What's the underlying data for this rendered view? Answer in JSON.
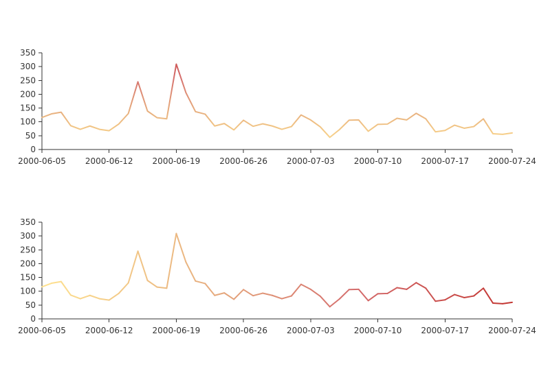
{
  "chart_data": [
    {
      "type": "line",
      "color_mode": "visualMap-y",
      "visual_map": {
        "min": 0,
        "max": 400,
        "colors": [
          "#ffe28f",
          "#e8b17f",
          "#d46c6c",
          "#c23531"
        ]
      },
      "x": [
        "2000-06-05",
        "2000-06-06",
        "2000-06-07",
        "2000-06-08",
        "2000-06-09",
        "2000-06-10",
        "2000-06-11",
        "2000-06-12",
        "2000-06-13",
        "2000-06-14",
        "2000-06-15",
        "2000-06-16",
        "2000-06-17",
        "2000-06-18",
        "2000-06-19",
        "2000-06-20",
        "2000-06-21",
        "2000-06-22",
        "2000-06-23",
        "2000-06-24",
        "2000-06-25",
        "2000-06-26",
        "2000-06-27",
        "2000-06-28",
        "2000-06-29",
        "2000-06-30",
        "2000-07-01",
        "2000-07-02",
        "2000-07-03",
        "2000-07-04",
        "2000-07-05",
        "2000-07-06",
        "2000-07-07",
        "2000-07-08",
        "2000-07-09",
        "2000-07-10",
        "2000-07-11",
        "2000-07-12",
        "2000-07-13",
        "2000-07-14",
        "2000-07-15",
        "2000-07-16",
        "2000-07-17",
        "2000-07-18",
        "2000-07-19",
        "2000-07-20",
        "2000-07-21",
        "2000-07-22",
        "2000-07-23",
        "2000-07-24"
      ],
      "values": [
        116,
        129,
        135,
        86,
        73,
        85,
        73,
        68,
        92,
        130,
        245,
        139,
        115,
        111,
        309,
        206,
        137,
        128,
        85,
        94,
        71,
        106,
        84,
        93,
        85,
        73,
        83,
        125,
        107,
        82,
        44,
        72,
        106,
        107,
        66,
        91,
        92,
        113,
        107,
        131,
        111,
        64,
        69,
        88,
        77,
        83,
        111,
        57,
        55,
        60
      ],
      "x_ticks": [
        "2000-06-05",
        "2000-06-12",
        "2000-06-19",
        "2000-06-26",
        "2000-07-03",
        "2000-07-10",
        "2000-07-17",
        "2000-07-24"
      ],
      "y_ticks": [
        "0",
        "50",
        "100",
        "150",
        "200",
        "250",
        "300",
        "350"
      ],
      "ylim": [
        0,
        350
      ]
    },
    {
      "type": "line",
      "color_mode": "visualMap-x",
      "visual_map": {
        "min": 0,
        "max": 49,
        "colors": [
          "#ffe28f",
          "#e8b17f",
          "#d46c6c",
          "#c23531"
        ]
      },
      "x": [
        "2000-06-05",
        "2000-06-06",
        "2000-06-07",
        "2000-06-08",
        "2000-06-09",
        "2000-06-10",
        "2000-06-11",
        "2000-06-12",
        "2000-06-13",
        "2000-06-14",
        "2000-06-15",
        "2000-06-16",
        "2000-06-17",
        "2000-06-18",
        "2000-06-19",
        "2000-06-20",
        "2000-06-21",
        "2000-06-22",
        "2000-06-23",
        "2000-06-24",
        "2000-06-25",
        "2000-06-26",
        "2000-06-27",
        "2000-06-28",
        "2000-06-29",
        "2000-06-30",
        "2000-07-01",
        "2000-07-02",
        "2000-07-03",
        "2000-07-04",
        "2000-07-05",
        "2000-07-06",
        "2000-07-07",
        "2000-07-08",
        "2000-07-09",
        "2000-07-10",
        "2000-07-11",
        "2000-07-12",
        "2000-07-13",
        "2000-07-14",
        "2000-07-15",
        "2000-07-16",
        "2000-07-17",
        "2000-07-18",
        "2000-07-19",
        "2000-07-20",
        "2000-07-21",
        "2000-07-22",
        "2000-07-23",
        "2000-07-24"
      ],
      "values": [
        116,
        129,
        135,
        86,
        73,
        85,
        73,
        68,
        92,
        130,
        245,
        139,
        115,
        111,
        309,
        206,
        137,
        128,
        85,
        94,
        71,
        106,
        84,
        93,
        85,
        73,
        83,
        125,
        107,
        82,
        44,
        72,
        106,
        107,
        66,
        91,
        92,
        113,
        107,
        131,
        111,
        64,
        69,
        88,
        77,
        83,
        111,
        57,
        55,
        60
      ],
      "x_ticks": [
        "2000-06-05",
        "2000-06-12",
        "2000-06-19",
        "2000-06-26",
        "2000-07-03",
        "2000-07-10",
        "2000-07-17",
        "2000-07-24"
      ],
      "y_ticks": [
        "0",
        "50",
        "100",
        "150",
        "200",
        "250",
        "300",
        "350"
      ],
      "ylim": [
        0,
        350
      ]
    }
  ]
}
